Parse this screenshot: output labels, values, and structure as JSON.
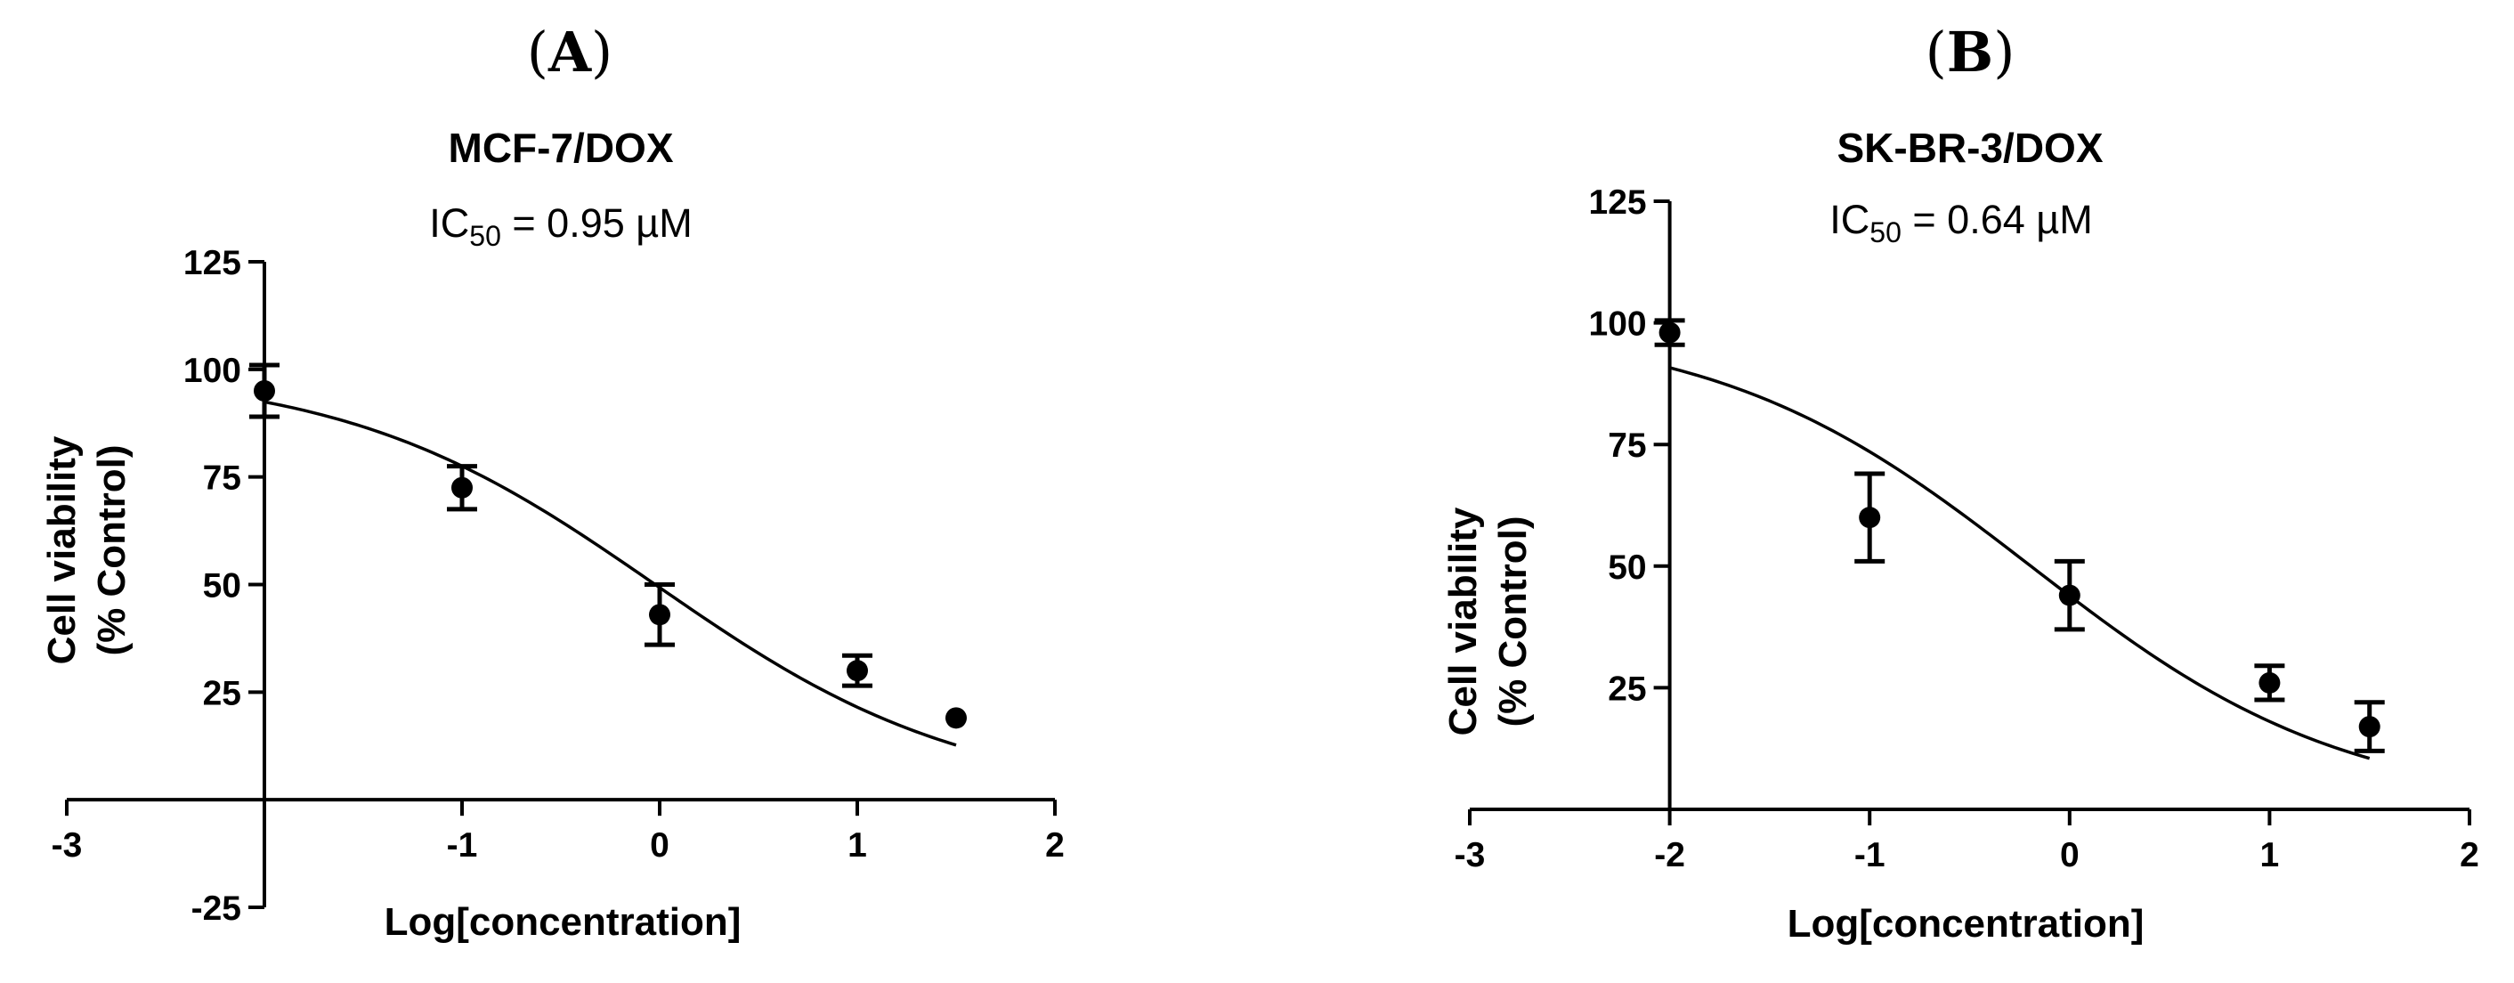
{
  "chart_data": [
    {
      "type": "scatter",
      "panel_label": "A",
      "title": "MCF-7/DOX",
      "ic50_prefix": "IC",
      "ic50_sub": "50",
      "ic50_text": " = 0.95 µM",
      "xlabel": "Log[concentration]",
      "ylabel_line1": "Cell viability",
      "ylabel_line2": "(% Control)",
      "xlim": [
        -3,
        2
      ],
      "ylim": [
        -25,
        125
      ],
      "x_ticks": [
        -3,
        -1,
        0,
        1,
        2
      ],
      "x_tick_labels": [
        "-3",
        "-1",
        "0",
        "1",
        "2"
      ],
      "y_ticks": [
        -25,
        25,
        50,
        75,
        100,
        125
      ],
      "y_tick_labels": [
        "-25",
        "25",
        "50",
        "75",
        "100",
        "125"
      ],
      "x_axis_at_y": 0,
      "y_axis_at_x": -2,
      "points": [
        {
          "x": -2,
          "y": 95,
          "err": 6
        },
        {
          "x": -1,
          "y": 72.5,
          "err": 5
        },
        {
          "x": 0,
          "y": 43,
          "err": 7
        },
        {
          "x": 1,
          "y": 30,
          "err": 3.5
        },
        {
          "x": 1.5,
          "y": 19,
          "err": 0
        }
      ],
      "fit": {
        "model": "sigmoid",
        "top": 100,
        "bottom": 0,
        "log_ic50": -0.0223,
        "hill": 0.55,
        "x_range": [
          -2,
          1.5
        ]
      }
    },
    {
      "type": "scatter",
      "panel_label": "B",
      "title": "SK-BR-3/DOX",
      "ic50_prefix": "IC",
      "ic50_sub": "50",
      "ic50_text": " = 0.64 µM",
      "xlabel": "Log[concentration]",
      "ylabel_line1": "Cell viability",
      "ylabel_line2": "(% Control)",
      "xlim": [
        -3,
        2
      ],
      "ylim": [
        0,
        125
      ],
      "x_ticks": [
        -3,
        -2,
        -1,
        0,
        1,
        2
      ],
      "x_tick_labels": [
        "-3",
        "-2",
        "-1",
        "0",
        "1",
        "2"
      ],
      "y_ticks": [
        25,
        50,
        75,
        100,
        125
      ],
      "y_tick_labels": [
        "25",
        "50",
        "75",
        "100",
        "125"
      ],
      "x_axis_at_y": 0,
      "y_axis_at_x": -2,
      "points": [
        {
          "x": -2,
          "y": 98,
          "err": 2.5
        },
        {
          "x": -1,
          "y": 60,
          "err": 9
        },
        {
          "x": 0,
          "y": 44,
          "err": 7
        },
        {
          "x": 1,
          "y": 26,
          "err": 3.5
        },
        {
          "x": 1.5,
          "y": 17,
          "err": 5
        }
      ],
      "fit": {
        "model": "sigmoid",
        "top": 100,
        "bottom": 0,
        "log_ic50": -0.1938,
        "hill": 0.55,
        "x_range": [
          -2,
          1.5
        ]
      }
    }
  ]
}
